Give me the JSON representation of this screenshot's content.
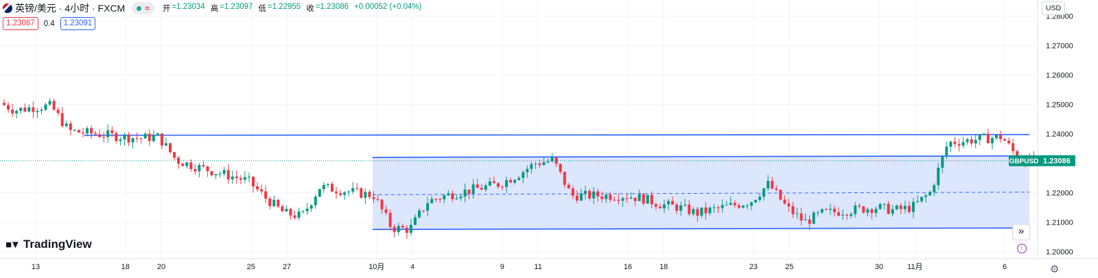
{
  "header": {
    "symbol": "英镑/美元 · 4小时 · FXCM",
    "open_label": "开",
    "open": "=1.23034",
    "high_label": "高",
    "high": "=1.23097",
    "low_label": "低",
    "low": "=1.22955",
    "close_label": "收",
    "close": "=1.23086",
    "change": "+0.00052 (+0.04%)",
    "sell_price": "1.23087",
    "spread": "0.4",
    "buy_price": "1.23091",
    "currency": "USD",
    "logo_text": "TradingView",
    "indicator_glyph": "≈"
  },
  "icons": [
    "gbp-flag-icon",
    "market-status-icon",
    "tradingview-logo-icon",
    "scroll-forward-icon",
    "alert-icon",
    "settings-icon"
  ],
  "colors": {
    "up": "#089981",
    "down": "#f23645",
    "line": "#2962ff",
    "channel_fill": "#d6e2fd"
  },
  "chart_data": {
    "type": "candlestick",
    "symbol": "GBPUSD",
    "last_price": "1.23086",
    "y_ticks": [
      "1.28000",
      "1.27000",
      "1.26000",
      "1.25000",
      "1.24000",
      "1.22000",
      "1.21000",
      "1.20000"
    ],
    "ylim": [
      1.1975,
      1.2855
    ],
    "x_ticks": [
      {
        "label": "13",
        "date": "2023-09-13"
      },
      {
        "label": "18",
        "date": "2023-09-18"
      },
      {
        "label": "20",
        "date": "2023-09-20"
      },
      {
        "label": "25",
        "date": "2023-09-25"
      },
      {
        "label": "27",
        "date": "2023-09-27"
      },
      {
        "label": "10月",
        "date": "2023-10-02"
      },
      {
        "label": "4",
        "date": "2023-10-04"
      },
      {
        "label": "9",
        "date": "2023-10-09"
      },
      {
        "label": "11",
        "date": "2023-10-11"
      },
      {
        "label": "16",
        "date": "2023-10-16"
      },
      {
        "label": "18",
        "date": "2023-10-18"
      },
      {
        "label": "23",
        "date": "2023-10-23"
      },
      {
        "label": "25",
        "date": "2023-10-25"
      },
      {
        "label": "30",
        "date": "2023-10-30"
      },
      {
        "label": "11月",
        "date": "2023-11-01"
      },
      {
        "label": "6",
        "date": "2023-11-06"
      }
    ],
    "close_path": [
      [
        "2023-09-11",
        1.251
      ],
      [
        "2023-09-12",
        1.248
      ],
      [
        "2023-09-13",
        1.249
      ],
      [
        "2023-09-14",
        1.2495
      ],
      [
        "2023-09-15",
        1.241
      ],
      [
        "2023-09-18",
        1.239
      ],
      [
        "2023-09-19",
        1.2385
      ],
      [
        "2023-09-20",
        1.239
      ],
      [
        "2023-09-21",
        1.231
      ],
      [
        "2023-09-22",
        1.229
      ],
      [
        "2023-09-25",
        1.224
      ],
      [
        "2023-09-26",
        1.218
      ],
      [
        "2023-09-27",
        1.213
      ],
      [
        "2023-09-28",
        1.212
      ],
      [
        "2023-09-29",
        1.222
      ],
      [
        "2023-10-02",
        1.219
      ],
      [
        "2023-10-03",
        1.208
      ],
      [
        "2023-10-04",
        1.2075
      ],
      [
        "2023-10-05",
        1.217
      ],
      [
        "2023-10-06",
        1.219
      ],
      [
        "2023-10-09",
        1.223
      ],
      [
        "2023-10-10",
        1.226
      ],
      [
        "2023-10-11",
        1.23
      ],
      [
        "2023-10-12",
        1.231
      ],
      [
        "2023-10-13",
        1.219
      ],
      [
        "2023-10-16",
        1.219
      ],
      [
        "2023-10-17",
        1.218
      ],
      [
        "2023-10-18",
        1.216
      ],
      [
        "2023-10-19",
        1.215
      ],
      [
        "2023-10-20",
        1.213
      ],
      [
        "2023-10-23",
        1.217
      ],
      [
        "2023-10-24",
        1.223
      ],
      [
        "2023-10-25",
        1.215
      ],
      [
        "2023-10-26",
        1.21
      ],
      [
        "2023-10-27",
        1.213
      ],
      [
        "2023-10-30",
        1.215
      ],
      [
        "2023-10-31",
        1.214
      ],
      [
        "2023-11-01",
        1.215
      ],
      [
        "2023-11-02",
        1.22
      ],
      [
        "2023-11-03",
        1.237
      ],
      [
        "2023-11-06",
        1.239
      ],
      [
        "2023-11-07",
        1.2309
      ]
    ],
    "horizontal_lines": [
      {
        "style": "solid",
        "from": "2023-09-18",
        "to": "2023-11-07",
        "y": 1.2395
      }
    ],
    "channel": {
      "from": "2023-10-02",
      "to": "2023-11-07",
      "top": [
        1.232,
        1.2325
      ],
      "mid": [
        1.2193,
        1.2202
      ],
      "bottom": [
        1.2075,
        1.208
      ]
    }
  }
}
